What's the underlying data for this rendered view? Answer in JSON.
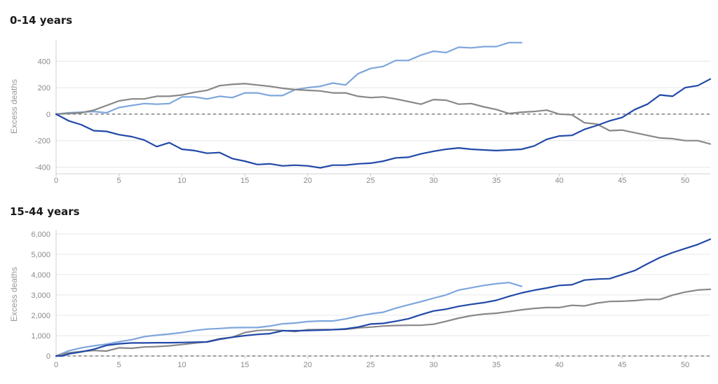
{
  "chart_data": [
    {
      "type": "line",
      "title": "0-14 years",
      "ylabel": "Excess deaths",
      "xlim": [
        0,
        52
      ],
      "ylim": [
        -450,
        560
      ],
      "xticks": [
        0,
        5,
        10,
        15,
        20,
        25,
        30,
        35,
        40,
        45,
        50
      ],
      "yticks": [
        -400,
        -200,
        0,
        200,
        400
      ],
      "ytick_labels": [
        "-400",
        "-200",
        "0",
        "200",
        "400"
      ],
      "reference_line": 0,
      "grid": "horizontal",
      "series": [
        {
          "color": "#7ea6dc",
          "x": [
            0,
            1,
            2,
            3,
            4,
            5,
            6,
            7,
            8,
            9,
            10,
            11,
            12,
            13,
            14,
            15,
            16,
            17,
            18,
            19,
            20,
            21,
            22,
            23,
            24,
            25,
            26,
            27,
            28,
            29,
            30,
            31,
            32,
            33,
            34,
            35,
            36,
            37
          ],
          "values": [
            0,
            10,
            15,
            20,
            10,
            50,
            65,
            80,
            75,
            80,
            130,
            130,
            115,
            135,
            125,
            160,
            160,
            140,
            140,
            185,
            200,
            210,
            235,
            220,
            305,
            345,
            360,
            405,
            405,
            445,
            475,
            465,
            505,
            500,
            510,
            510,
            540,
            540
          ]
        },
        {
          "color": "#888888",
          "x": [
            0,
            1,
            2,
            3,
            4,
            5,
            6,
            7,
            8,
            9,
            10,
            11,
            12,
            13,
            14,
            15,
            16,
            17,
            18,
            19,
            20,
            21,
            22,
            23,
            24,
            25,
            26,
            27,
            28,
            29,
            30,
            31,
            32,
            33,
            34,
            35,
            36,
            37,
            38,
            39,
            40,
            41,
            42,
            43,
            44,
            45,
            46,
            47,
            48,
            49,
            50,
            51,
            52
          ],
          "values": [
            0,
            5,
            10,
            30,
            65,
            100,
            115,
            115,
            135,
            135,
            145,
            165,
            180,
            215,
            225,
            230,
            220,
            210,
            195,
            185,
            180,
            175,
            160,
            160,
            135,
            125,
            130,
            115,
            95,
            75,
            110,
            105,
            75,
            80,
            55,
            35,
            5,
            15,
            20,
            30,
            0,
            -5,
            -65,
            -75,
            -125,
            -120,
            -140,
            -160,
            -180,
            -185,
            -200,
            -200,
            -225
          ]
        },
        {
          "color": "#2249a8",
          "x": [
            0,
            1,
            2,
            3,
            4,
            5,
            6,
            7,
            8,
            9,
            10,
            11,
            12,
            13,
            14,
            15,
            16,
            17,
            18,
            19,
            20,
            21,
            22,
            23,
            24,
            25,
            26,
            27,
            28,
            29,
            30,
            31,
            32,
            33,
            34,
            35,
            36,
            37,
            38,
            39,
            40,
            41,
            42,
            43,
            44,
            45,
            46,
            47,
            48,
            49,
            50,
            51,
            52
          ],
          "values": [
            0,
            -50,
            -80,
            -125,
            -130,
            -155,
            -170,
            -195,
            -245,
            -215,
            -265,
            -275,
            -295,
            -290,
            -335,
            -355,
            -380,
            -375,
            -390,
            -385,
            -390,
            -405,
            -385,
            -385,
            -375,
            -370,
            -355,
            -330,
            -325,
            -300,
            -280,
            -265,
            -255,
            -265,
            -270,
            -275,
            -270,
            -265,
            -240,
            -190,
            -165,
            -160,
            -115,
            -85,
            -50,
            -25,
            35,
            75,
            145,
            135,
            200,
            215,
            265
          ]
        }
      ]
    },
    {
      "type": "line",
      "title": "15-44 years",
      "ylabel": "Excess deaths",
      "xlim": [
        0,
        52
      ],
      "ylim": [
        0,
        6200
      ],
      "xticks": [
        0,
        5,
        10,
        15,
        20,
        25,
        30,
        35,
        40,
        45,
        50
      ],
      "yticks": [
        0,
        1000,
        2000,
        3000,
        4000,
        5000,
        6000
      ],
      "ytick_labels": [
        "0",
        "1,000",
        "2,000",
        "3,000",
        "4,000",
        "5,000",
        "6,000"
      ],
      "reference_line": 0,
      "grid": "horizontal",
      "series": [
        {
          "color": "#7ea6dc",
          "x": [
            0,
            1,
            2,
            3,
            4,
            5,
            6,
            7,
            8,
            9,
            10,
            11,
            12,
            13,
            14,
            15,
            16,
            17,
            18,
            19,
            20,
            21,
            22,
            23,
            24,
            25,
            26,
            27,
            28,
            29,
            30,
            31,
            32,
            33,
            34,
            35,
            36,
            37
          ],
          "values": [
            0,
            250,
            400,
            500,
            580,
            700,
            800,
            950,
            1020,
            1080,
            1150,
            1250,
            1320,
            1350,
            1390,
            1400,
            1400,
            1470,
            1580,
            1620,
            1690,
            1720,
            1720,
            1820,
            1960,
            2070,
            2150,
            2350,
            2510,
            2670,
            2840,
            3000,
            3240,
            3350,
            3470,
            3550,
            3610,
            3420
          ]
        },
        {
          "color": "#888888",
          "x": [
            0,
            1,
            2,
            3,
            4,
            5,
            6,
            7,
            8,
            9,
            10,
            11,
            12,
            13,
            14,
            15,
            16,
            17,
            18,
            19,
            20,
            21,
            22,
            23,
            24,
            25,
            26,
            27,
            28,
            29,
            30,
            31,
            32,
            33,
            34,
            35,
            36,
            37,
            38,
            39,
            40,
            41,
            42,
            43,
            44,
            45,
            46,
            47,
            48,
            49,
            50,
            51,
            52
          ],
          "values": [
            0,
            150,
            220,
            270,
            240,
            400,
            380,
            440,
            460,
            500,
            560,
            630,
            700,
            850,
            920,
            1150,
            1250,
            1280,
            1250,
            1200,
            1290,
            1300,
            1300,
            1310,
            1380,
            1420,
            1470,
            1500,
            1510,
            1510,
            1560,
            1700,
            1860,
            1980,
            2060,
            2100,
            2180,
            2270,
            2340,
            2380,
            2380,
            2490,
            2460,
            2600,
            2680,
            2690,
            2720,
            2780,
            2780,
            2990,
            3140,
            3240,
            3280
          ]
        },
        {
          "color": "#2249a8",
          "x": [
            0,
            0.5,
            1,
            2,
            3,
            4,
            5,
            6,
            7,
            8,
            9,
            10,
            11,
            12,
            13,
            14,
            15,
            16,
            17,
            18,
            19,
            20,
            21,
            22,
            23,
            24,
            25,
            26,
            27,
            28,
            29,
            30,
            31,
            32,
            33,
            34,
            35,
            36,
            37,
            38,
            39,
            40,
            41,
            42,
            43,
            44,
            45,
            46,
            47,
            48,
            49,
            50,
            51,
            52
          ],
          "values": [
            0,
            0,
            100,
            200,
            330,
            520,
            600,
            640,
            640,
            650,
            650,
            660,
            680,
            690,
            820,
            920,
            1000,
            1060,
            1100,
            1240,
            1240,
            1250,
            1270,
            1290,
            1330,
            1420,
            1570,
            1600,
            1710,
            1830,
            2030,
            2210,
            2300,
            2440,
            2540,
            2620,
            2740,
            2930,
            3100,
            3230,
            3340,
            3470,
            3500,
            3730,
            3780,
            3800,
            4000,
            4200,
            4530,
            4840,
            5080,
            5280,
            5480,
            5740
          ]
        }
      ]
    }
  ]
}
